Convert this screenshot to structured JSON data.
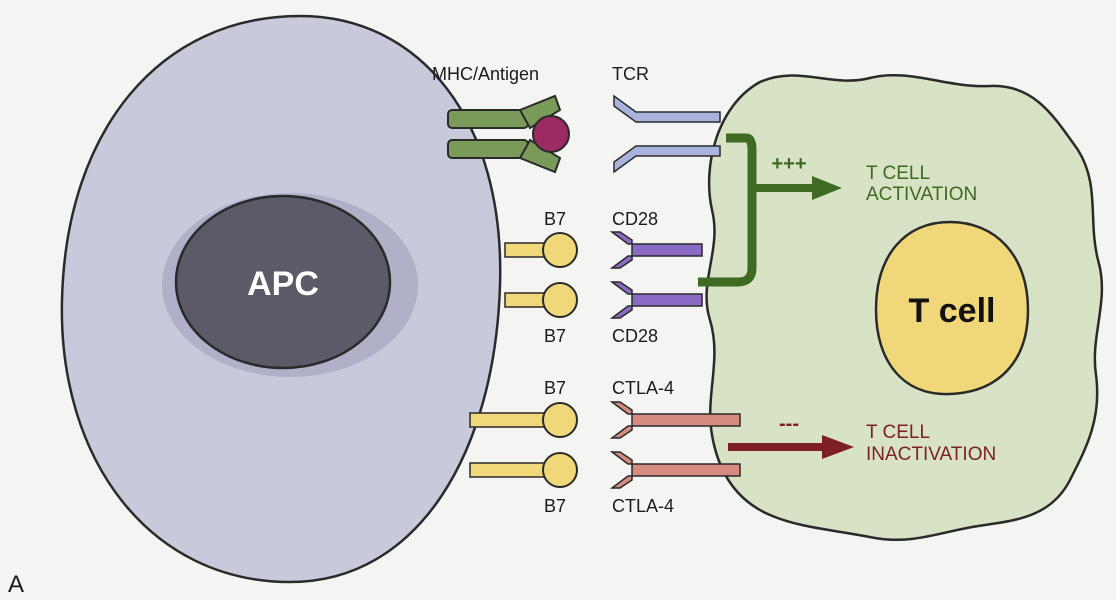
{
  "panel_letter": "A",
  "apc": {
    "label": "APC"
  },
  "t_cell": {
    "label": "T cell"
  },
  "receptors": {
    "mhc_label": "MHC/Antigen",
    "tcr_label": "TCR",
    "b7_top1": "B7",
    "b7_bottom1": "B7",
    "b7_top2": "B7",
    "b7_bottom2": "B7",
    "cd28_top": "CD28",
    "cd28_bottom": "CD28",
    "ctla4_top": "CTLA-4",
    "ctla4_bottom": "CTLA-4"
  },
  "signals": {
    "activation_symbol": "+++",
    "activation_line1": "T CELL",
    "activation_line2": "ACTIVATION",
    "inactivation_symbol": "---",
    "inactivation_line1": "T CELL",
    "inactivation_line2": "INACTIVATION"
  },
  "colors": {
    "apc_fill": "#c9c9dc",
    "apc_nucleus": "#5b5a66",
    "t_cell_fill": "#d7e3c4",
    "t_cell_nucleus": "#f0d77a",
    "mhc": "#7a9a5a",
    "antigen": "#9c2a63",
    "tcr": "#a9b3dd",
    "b7": "#f0d77a",
    "cd28": "#8a6ac4",
    "ctla4": "#d68a80",
    "activation": "#3f6a22",
    "inactivation": "#7d1f24"
  }
}
